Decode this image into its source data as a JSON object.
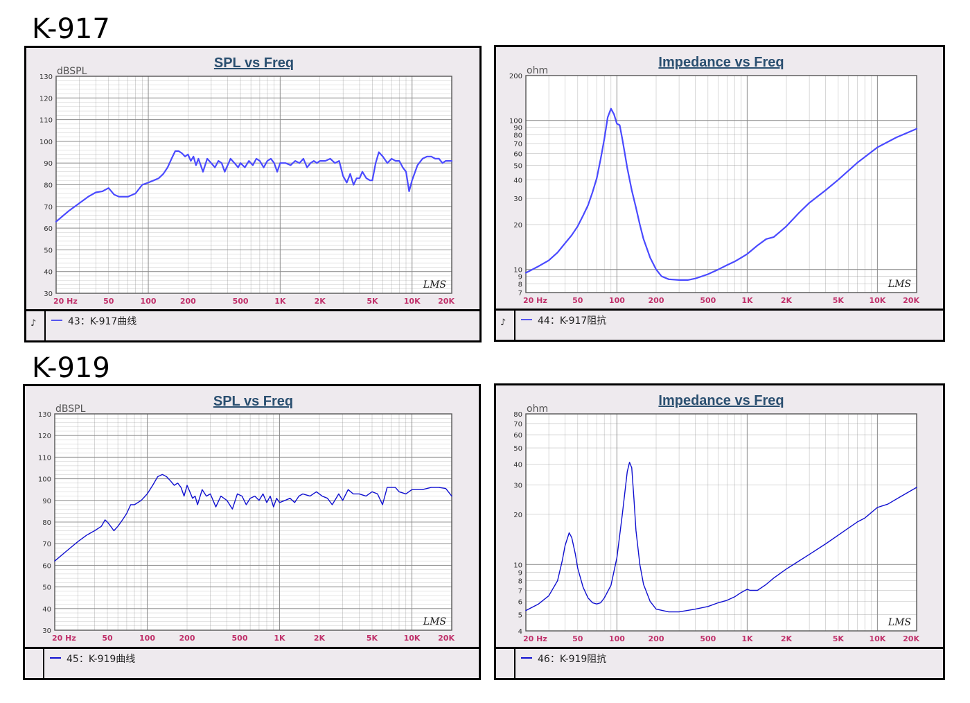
{
  "models": [
    {
      "title": "K-917"
    },
    {
      "title": "K-919"
    }
  ],
  "colors": {
    "curve_light": "#4a4aff",
    "curve_dark": "#1010d0",
    "grid": "#8a8a8a",
    "tick": "#c0306a",
    "title": "#2a4f70",
    "plot_bg": "#ffffff"
  },
  "chart_data": [
    {
      "type": "line",
      "title": "SPL vs Freq",
      "ylabel": "dBSPL",
      "xscale": "log",
      "xlim": [
        20,
        20000
      ],
      "ylim": [
        30,
        130
      ],
      "y_ticks": [
        "130",
        "120",
        "110",
        "100",
        "90",
        "80",
        "70",
        "60",
        "50",
        "40",
        "30"
      ],
      "x_ticks": [
        "20 Hz",
        "50",
        "100",
        "200",
        "500",
        "1K",
        "2K",
        "5K",
        "10K",
        "20K"
      ],
      "grid": true,
      "logo": "LMS",
      "legend": "43：K-917曲线",
      "series": [
        {
          "x": [
            20,
            25,
            30,
            35,
            40,
            45,
            50,
            55,
            60,
            70,
            80,
            90,
            100,
            110,
            120,
            130,
            140,
            150,
            160,
            170,
            180,
            190,
            200,
            210,
            220,
            230,
            240,
            260,
            280,
            300,
            320,
            340,
            360,
            380,
            400,
            420,
            450,
            480,
            500,
            540,
            580,
            620,
            660,
            700,
            750,
            800,
            850,
            900,
            950,
            1000,
            1100,
            1200,
            1300,
            1400,
            1500,
            1600,
            1700,
            1800,
            1900,
            2000,
            2200,
            2400,
            2600,
            2800,
            3000,
            3200,
            3400,
            3600,
            3800,
            4000,
            4200,
            4500,
            4800,
            5000,
            5300,
            5600,
            6000,
            6500,
            7000,
            7500,
            8000,
            8500,
            9000,
            9500,
            10000,
            11000,
            12000,
            13000,
            14000,
            15000,
            16000,
            17000,
            18000,
            20000
          ],
          "y": [
            63,
            68,
            71.5,
            74.5,
            76.5,
            77,
            78.5,
            75.5,
            74.5,
            74.5,
            76,
            80,
            81,
            82,
            83,
            85,
            88,
            92,
            95.5,
            95.5,
            94.5,
            93,
            94,
            91,
            93,
            89,
            92,
            86,
            92,
            90,
            88,
            91,
            90,
            86,
            89,
            92,
            90,
            88,
            90,
            88,
            91,
            89,
            92,
            91,
            88,
            91,
            92,
            90,
            86,
            90,
            90,
            89,
            91,
            90,
            92,
            88,
            90,
            91,
            90,
            91,
            91,
            92,
            90,
            91,
            84,
            81,
            85,
            80,
            83,
            83,
            86,
            83,
            82,
            82,
            90,
            95,
            93,
            90,
            92,
            91,
            91,
            88,
            86,
            77,
            82,
            89,
            92,
            93,
            93,
            92,
            92,
            90,
            91,
            91
          ]
        }
      ]
    },
    {
      "type": "line",
      "title": "Impedance vs Freq",
      "ylabel": "ohm",
      "xscale": "log",
      "yscale": "log",
      "xlim": [
        20,
        20000
      ],
      "ylim": [
        7,
        200
      ],
      "y_ticks": [
        "200",
        "100",
        "90",
        "80",
        "70",
        "60",
        "50",
        "40",
        "30",
        "20",
        "10",
        "9",
        "8",
        "7"
      ],
      "x_ticks": [
        "20 Hz",
        "50",
        "100",
        "200",
        "500",
        "1K",
        "2K",
        "5K",
        "10K",
        "20K"
      ],
      "grid": true,
      "logo": "LMS",
      "legend": "44：K-917阻抗",
      "series": [
        {
          "x": [
            20,
            25,
            30,
            35,
            40,
            45,
            50,
            55,
            60,
            65,
            70,
            75,
            80,
            85,
            90,
            95,
            100,
            105,
            110,
            115,
            120,
            130,
            140,
            150,
            160,
            180,
            200,
            220,
            250,
            300,
            350,
            400,
            450,
            500,
            600,
            700,
            800,
            900,
            1000,
            1200,
            1400,
            1600,
            1800,
            2000,
            2500,
            3000,
            4000,
            5000,
            7000,
            10000,
            14000,
            20000
          ],
          "y": [
            9.5,
            10.5,
            11.5,
            13,
            15,
            17,
            19.5,
            23,
            27,
            33,
            41,
            55,
            75,
            105,
            120,
            110,
            95,
            93,
            75,
            60,
            48,
            34,
            26,
            20,
            16,
            12,
            10,
            9,
            8.6,
            8.5,
            8.5,
            8.7,
            9,
            9.3,
            10,
            10.7,
            11.3,
            12,
            12.7,
            14.5,
            16,
            16.5,
            18,
            19.5,
            24,
            28,
            34,
            40,
            52,
            66,
            77,
            88
          ]
        }
      ]
    },
    {
      "type": "line",
      "title": "SPL vs Freq",
      "ylabel": "dBSPL",
      "xscale": "log",
      "xlim": [
        20,
        20000
      ],
      "ylim": [
        30,
        130
      ],
      "y_ticks": [
        "130",
        "120",
        "110",
        "100",
        "90",
        "80",
        "70",
        "60",
        "50",
        "40",
        "30"
      ],
      "x_ticks": [
        "20 Hz",
        "50",
        "100",
        "200",
        "500",
        "1K",
        "2K",
        "5K",
        "10K",
        "20K"
      ],
      "grid": true,
      "logo": "LMS",
      "legend": "45：K-919曲线",
      "series": [
        {
          "x": [
            20,
            25,
            30,
            35,
            40,
            45,
            48,
            50,
            53,
            56,
            60,
            65,
            70,
            75,
            80,
            85,
            90,
            100,
            110,
            120,
            130,
            140,
            150,
            160,
            170,
            180,
            190,
            200,
            210,
            220,
            230,
            240,
            260,
            280,
            300,
            330,
            360,
            400,
            440,
            480,
            520,
            560,
            600,
            650,
            700,
            750,
            800,
            850,
            900,
            950,
            1000,
            1100,
            1200,
            1300,
            1400,
            1500,
            1700,
            1900,
            2100,
            2300,
            2500,
            2800,
            3000,
            3300,
            3600,
            4000,
            4500,
            5000,
            5500,
            6000,
            6500,
            7000,
            7500,
            8000,
            9000,
            10000,
            11000,
            12000,
            14000,
            16000,
            18000,
            20000
          ],
          "y": [
            62,
            67,
            71,
            74,
            76,
            78,
            81,
            80,
            78,
            76,
            78,
            81,
            84,
            88,
            88,
            89,
            90,
            93,
            97,
            101,
            102,
            101,
            99,
            97,
            98,
            96,
            92,
            97,
            94,
            91,
            92,
            88,
            95,
            92,
            93,
            87,
            92,
            90,
            86,
            93,
            92,
            88,
            91,
            92,
            90,
            93,
            89,
            92,
            87,
            91,
            89,
            90,
            91,
            89,
            92,
            93,
            92,
            94,
            92,
            91,
            88,
            93,
            90,
            95,
            93,
            93,
            92,
            94,
            93,
            88,
            96,
            96,
            96,
            94,
            93,
            95,
            95,
            95,
            96,
            96,
            95.5,
            92
          ]
        }
      ]
    },
    {
      "type": "line",
      "title": "Impedance vs Freq",
      "ylabel": "ohm",
      "xscale": "log",
      "yscale": "log",
      "xlim": [
        20,
        20000
      ],
      "ylim": [
        4,
        80
      ],
      "y_ticks": [
        "80",
        "70",
        "60",
        "50",
        "40",
        "30",
        "20",
        "10",
        "9",
        "8",
        "7",
        "6",
        "5",
        "4"
      ],
      "x_ticks": [
        "20 Hz",
        "50",
        "100",
        "200",
        "500",
        "1K",
        "2K",
        "5K",
        "10K",
        "20K"
      ],
      "grid": true,
      "logo": "LMS",
      "legend": "46：K-919阻抗",
      "series": [
        {
          "x": [
            20,
            25,
            30,
            35,
            38,
            40,
            43,
            45,
            48,
            50,
            55,
            60,
            65,
            70,
            75,
            80,
            90,
            100,
            110,
            120,
            125,
            130,
            135,
            140,
            150,
            160,
            180,
            200,
            250,
            300,
            400,
            500,
            600,
            700,
            800,
            900,
            1000,
            1050,
            1100,
            1200,
            1400,
            1600,
            2000,
            3000,
            4000,
            5000,
            7000,
            8000,
            10000,
            12000,
            15000,
            20000
          ],
          "y": [
            5.3,
            5.8,
            6.5,
            8,
            10.5,
            13,
            15.5,
            14.5,
            11.5,
            9.5,
            7.3,
            6.3,
            5.9,
            5.8,
            5.9,
            6.3,
            7.5,
            11,
            20,
            36,
            41,
            38,
            25,
            16,
            10,
            7.6,
            6,
            5.4,
            5.2,
            5.2,
            5.4,
            5.6,
            5.9,
            6.1,
            6.4,
            6.8,
            7.1,
            7,
            7,
            7,
            7.6,
            8.3,
            9.4,
            11.5,
            13.3,
            15,
            18,
            19,
            22,
            23,
            25.5,
            29
          ]
        }
      ]
    }
  ]
}
